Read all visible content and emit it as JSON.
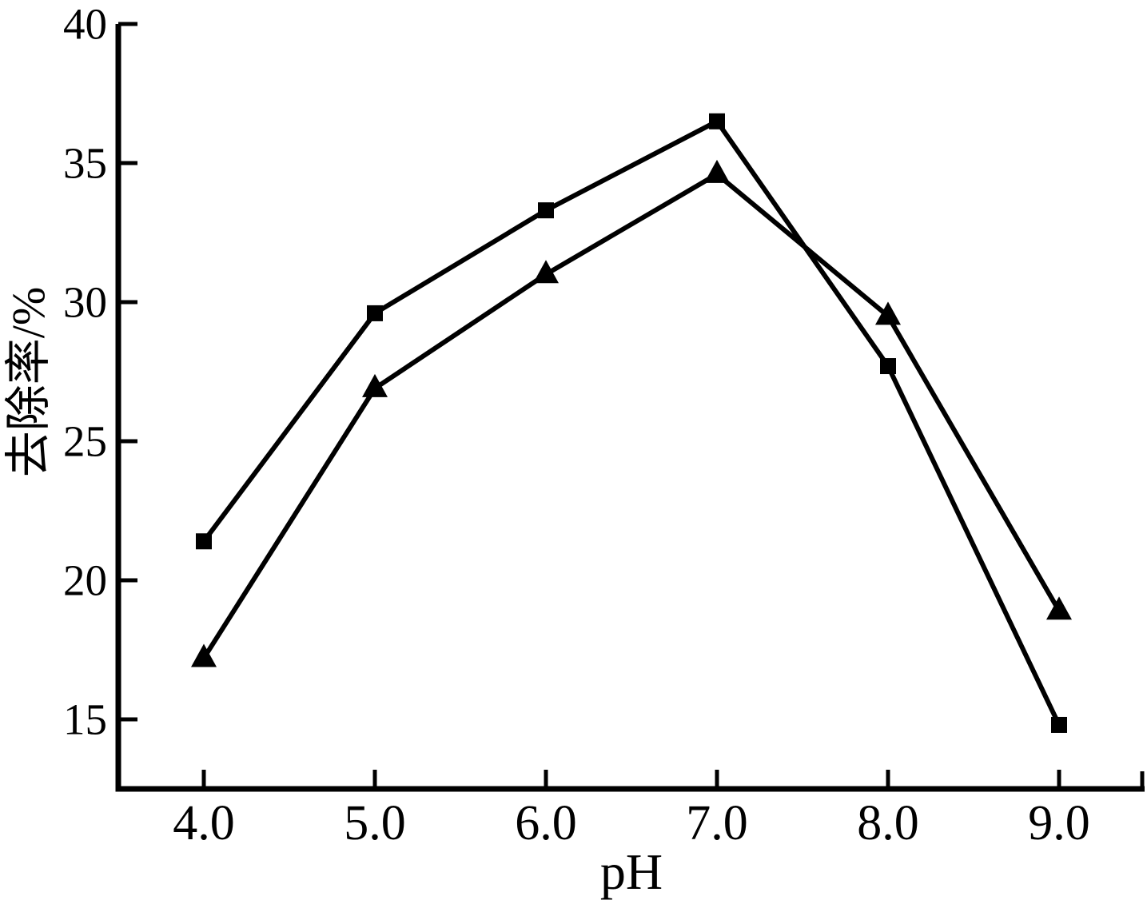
{
  "colors": {
    "background": "#ffffff",
    "axis": "#000000",
    "series": "#000000"
  },
  "chart_data": {
    "type": "line",
    "title": "",
    "xlabel": "pH",
    "ylabel": "去除率/%",
    "xlim": [
      3.5,
      9.5
    ],
    "ylim": [
      12.5,
      40
    ],
    "grid": false,
    "legend_position": "none",
    "x": [
      4.0,
      5.0,
      6.0,
      7.0,
      8.0,
      9.0
    ],
    "x_tick_labels": [
      "4.0",
      "5.0",
      "6.0",
      "7.0",
      "8.0",
      "9.0"
    ],
    "y_ticks": [
      15,
      20,
      25,
      30,
      35,
      40
    ],
    "y_tick_labels": [
      "15",
      "20",
      "25",
      "30",
      "35",
      "40"
    ],
    "series": [
      {
        "name": "square-series",
        "marker": "square",
        "color": "#000000",
        "values": [
          21.4,
          29.6,
          33.3,
          36.5,
          27.7,
          14.8
        ]
      },
      {
        "name": "triangle-series",
        "marker": "triangle",
        "color": "#000000",
        "values": [
          17.2,
          26.9,
          31.0,
          34.6,
          29.5,
          18.9
        ]
      }
    ]
  }
}
